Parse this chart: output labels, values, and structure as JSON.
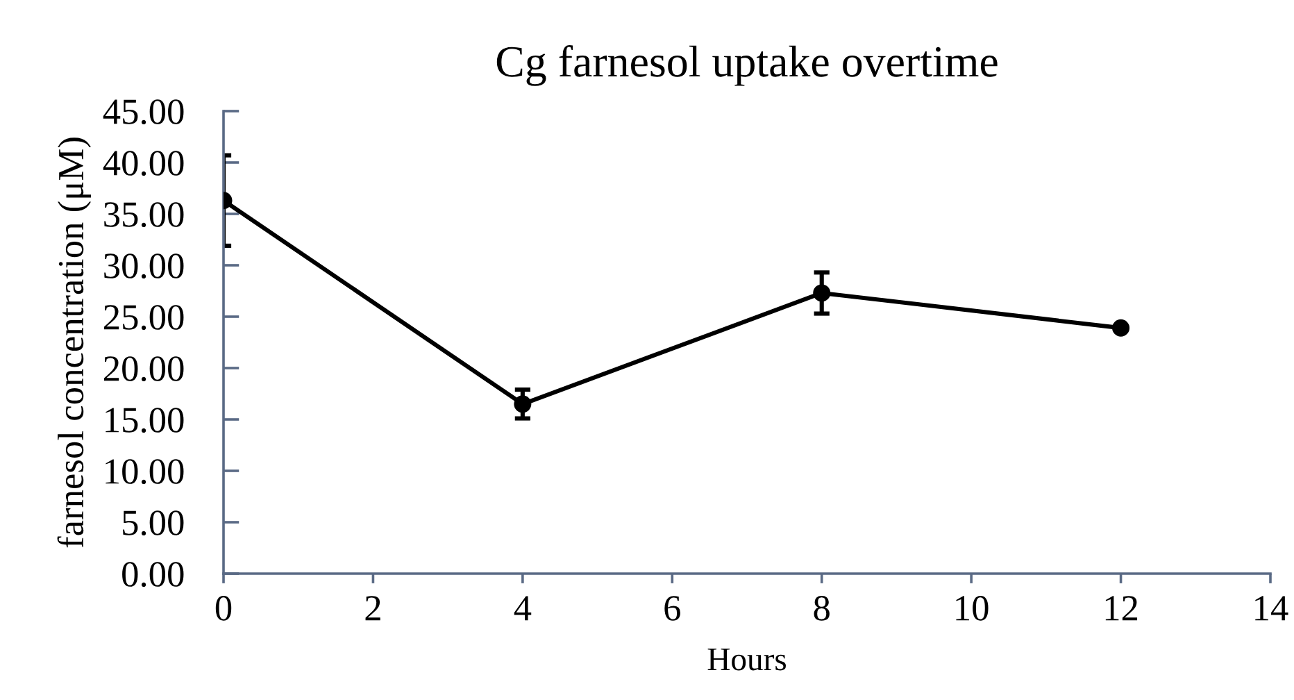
{
  "chart_data": {
    "type": "line",
    "title": "Cg farnesol uptake overtime",
    "xlabel": "Hours",
    "ylabel": "farnesol concentration (μM)",
    "x": [
      0,
      4,
      8,
      12
    ],
    "series": [
      {
        "color": "#000000",
        "values": [
          36.3,
          16.5,
          27.3,
          23.9
        ],
        "errors": [
          4.4,
          1.4,
          2.0,
          null
        ]
      }
    ],
    "xlim": [
      0,
      14
    ],
    "xticks": [
      0,
      2,
      4,
      6,
      8,
      10,
      12,
      14
    ],
    "ylim": [
      0,
      45
    ],
    "yticks": [
      {
        "value": 0,
        "label": "0.00"
      },
      {
        "value": 5,
        "label": "5.00"
      },
      {
        "value": 10,
        "label": "10.00"
      },
      {
        "value": 15,
        "label": "15.00"
      },
      {
        "value": 20,
        "label": "20.00"
      },
      {
        "value": 25,
        "label": "25.00"
      },
      {
        "value": 30,
        "label": "30.00"
      },
      {
        "value": 35,
        "label": "35.00"
      },
      {
        "value": 40,
        "label": "40.00"
      },
      {
        "value": 45,
        "label": "45.00"
      }
    ],
    "grid": false,
    "marker": "circle",
    "line_style": "solid"
  }
}
